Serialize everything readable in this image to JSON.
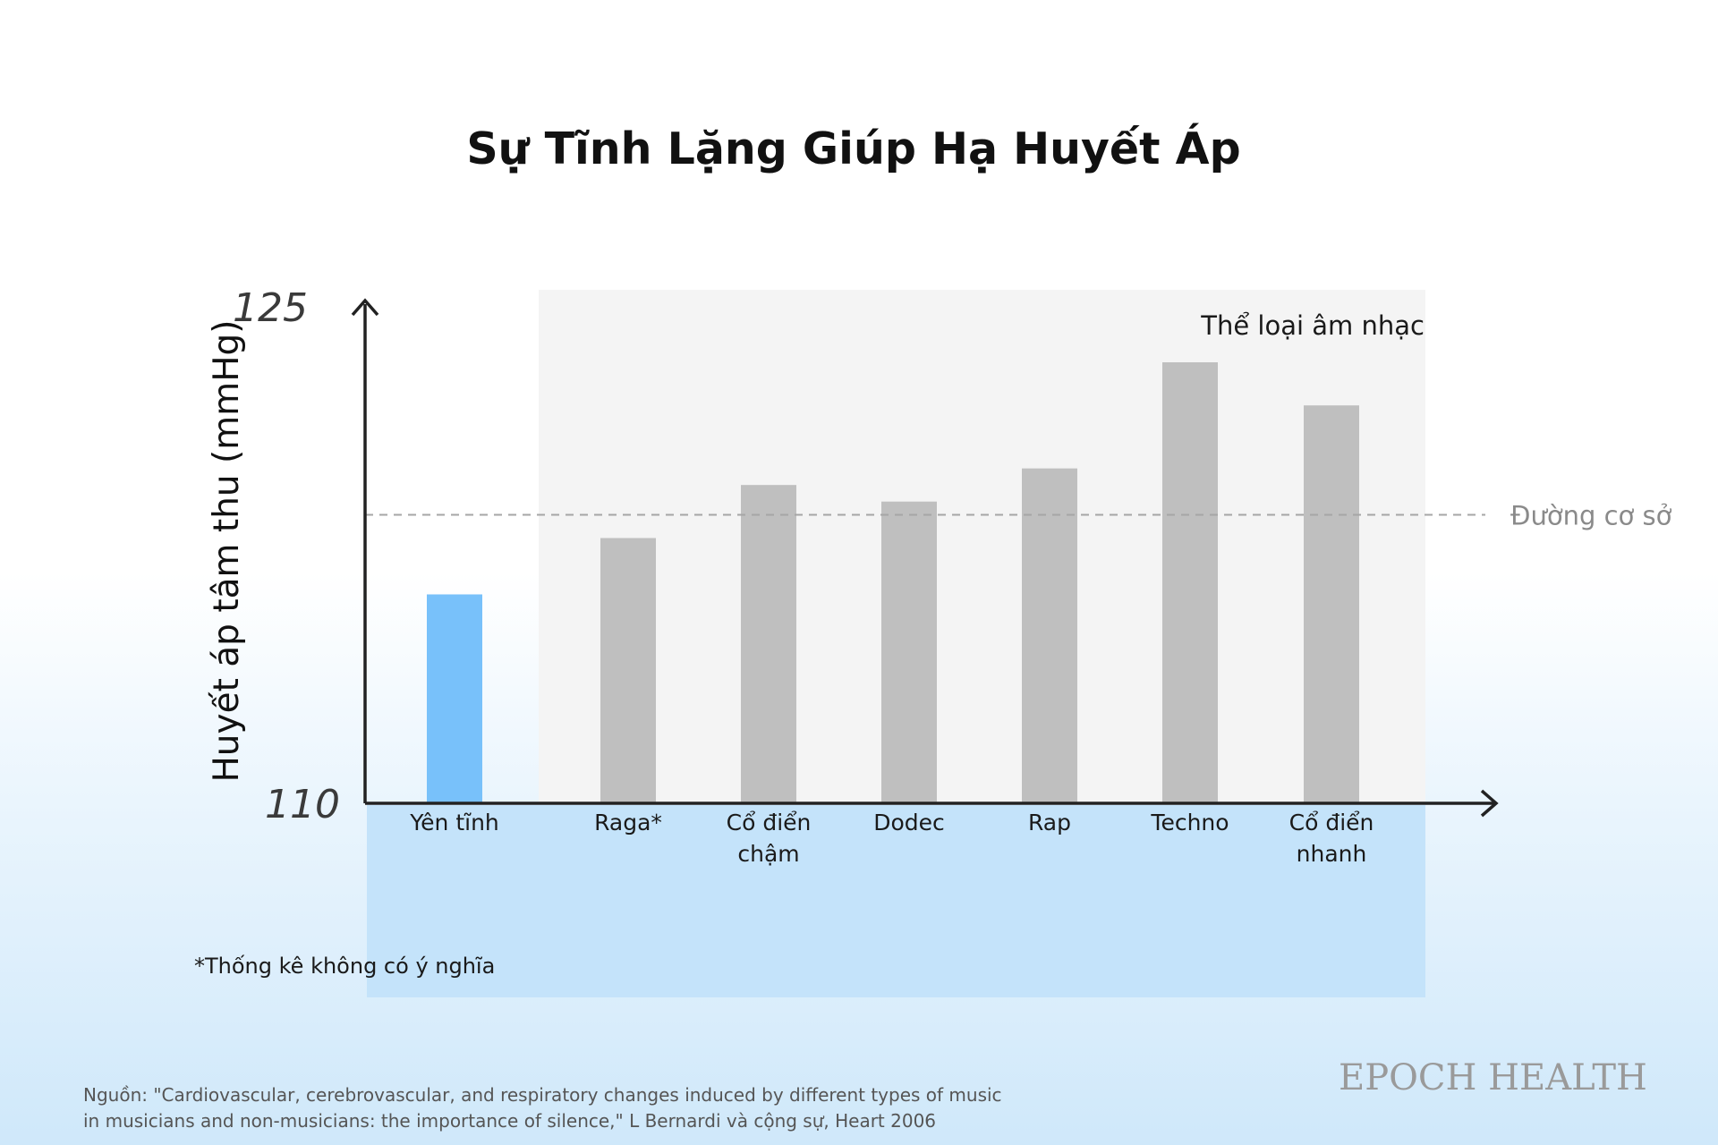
{
  "chart_data": {
    "type": "bar",
    "title": "Sự Tĩnh Lặng Giúp Hạ Huyết Áp",
    "ylabel": "Huyết áp tâm thu (mmHg)",
    "ylim": [
      110,
      125
    ],
    "yticks": [
      "125",
      "110"
    ],
    "categories": [
      [
        "Yên tĩnh"
      ],
      [
        "Raga*"
      ],
      [
        "Cổ điển",
        "chậm"
      ],
      [
        "Dodec"
      ],
      [
        "Rap"
      ],
      [
        "Techno"
      ],
      [
        "Cổ điển",
        "nhanh"
      ]
    ],
    "values": [
      116.3,
      118.0,
      119.6,
      119.1,
      120.1,
      123.3,
      122.0
    ],
    "highlight_index": 0,
    "region_label": "Thể loại âm nhạc",
    "baseline": {
      "value": 118.7,
      "label": "Đường cơ sở"
    },
    "colors": {
      "highlight": "#78c1fa",
      "bar": "#bfbfbf",
      "axis": "#222222",
      "baseline": "#a6a6a6",
      "region": "#f4f4f4",
      "below_axis_band": "#c4e3fa"
    },
    "grid": false,
    "legend": "none"
  },
  "footnote": "*Thống kê không có ý nghĩa",
  "source": [
    "Nguồn: \"Cardiovascular, cerebrovascular, and respiratory changes induced by different types of music",
    "in musicians and non-musicians: the importance of silence,\" L Bernardi và cộng sự, Heart 2006"
  ],
  "logo_text": "EPOCH HEALTH"
}
